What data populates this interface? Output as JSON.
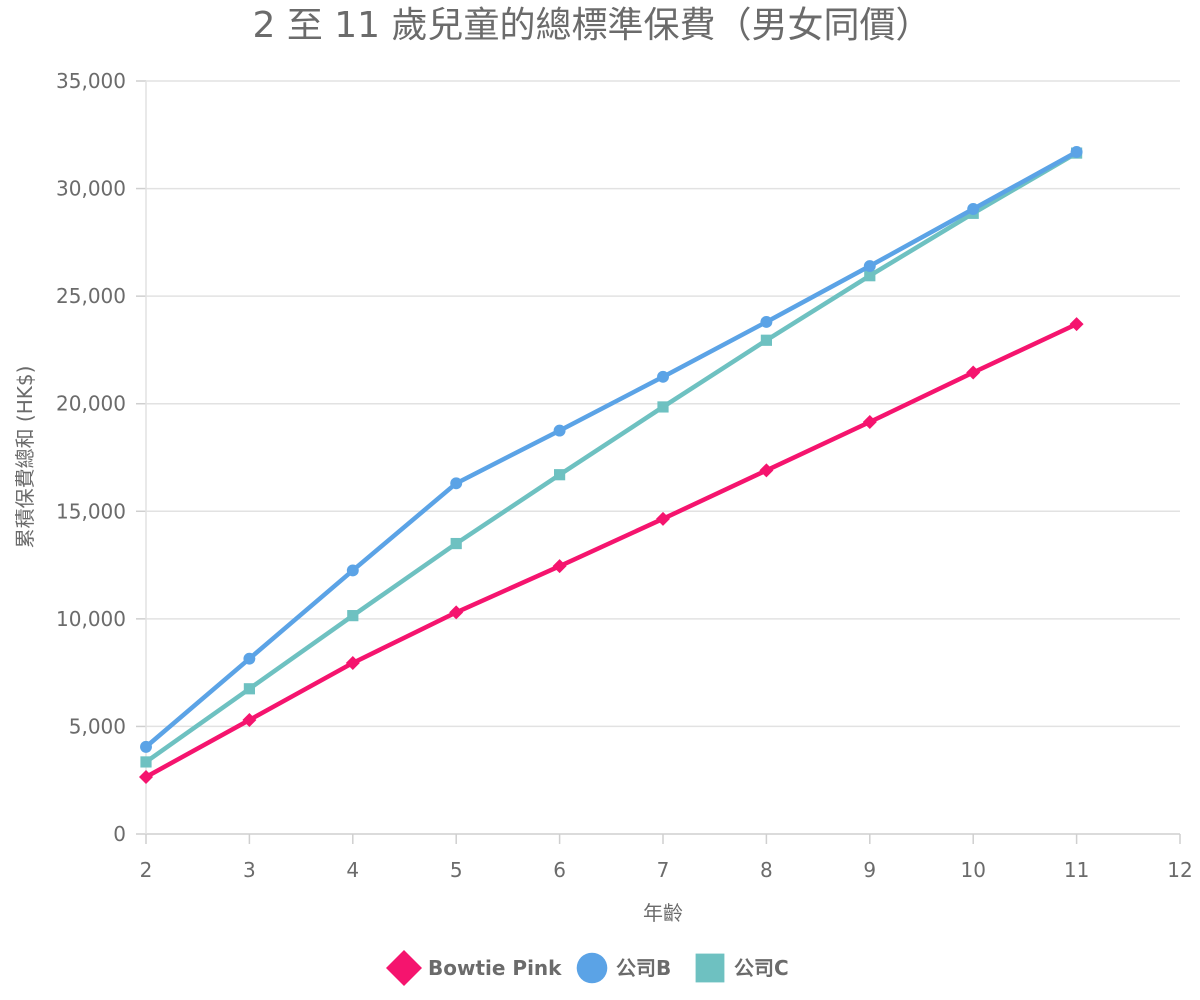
{
  "chart_data": {
    "type": "line",
    "title": "2 至 11 歲兒童的總標準保費（男女同價）",
    "xlabel": "年齡",
    "ylabel": "累積保費總和 (HK$)",
    "x": [
      2,
      3,
      4,
      5,
      6,
      7,
      8,
      9,
      10,
      11
    ],
    "xlim": [
      2,
      12
    ],
    "x_ticks": [
      "2",
      "3",
      "4",
      "5",
      "6",
      "7",
      "8",
      "9",
      "10",
      "11",
      "12"
    ],
    "ylim": [
      0,
      35000
    ],
    "y_ticks": [
      "0",
      "5,000",
      "10,000",
      "15,000",
      "20,000",
      "25,000",
      "30,000",
      "35,000"
    ],
    "grid": "horizontal",
    "legend_position": "bottom",
    "series": [
      {
        "name": "Bowtie Pink",
        "color": "#f5146e",
        "marker": "diamond",
        "values": [
          2650,
          5300,
          7950,
          10300,
          12450,
          14650,
          16900,
          19150,
          21450,
          23700
        ]
      },
      {
        "name": "公司B",
        "color": "#5ba3e6",
        "marker": "circle",
        "values": [
          4050,
          8150,
          12250,
          16300,
          18750,
          21250,
          23800,
          26400,
          29050,
          31700
        ]
      },
      {
        "name": "公司C",
        "color": "#6ec1c1",
        "marker": "square",
        "values": [
          3350,
          6750,
          10150,
          13500,
          16700,
          19850,
          22950,
          25950,
          28850,
          31650
        ]
      }
    ]
  }
}
